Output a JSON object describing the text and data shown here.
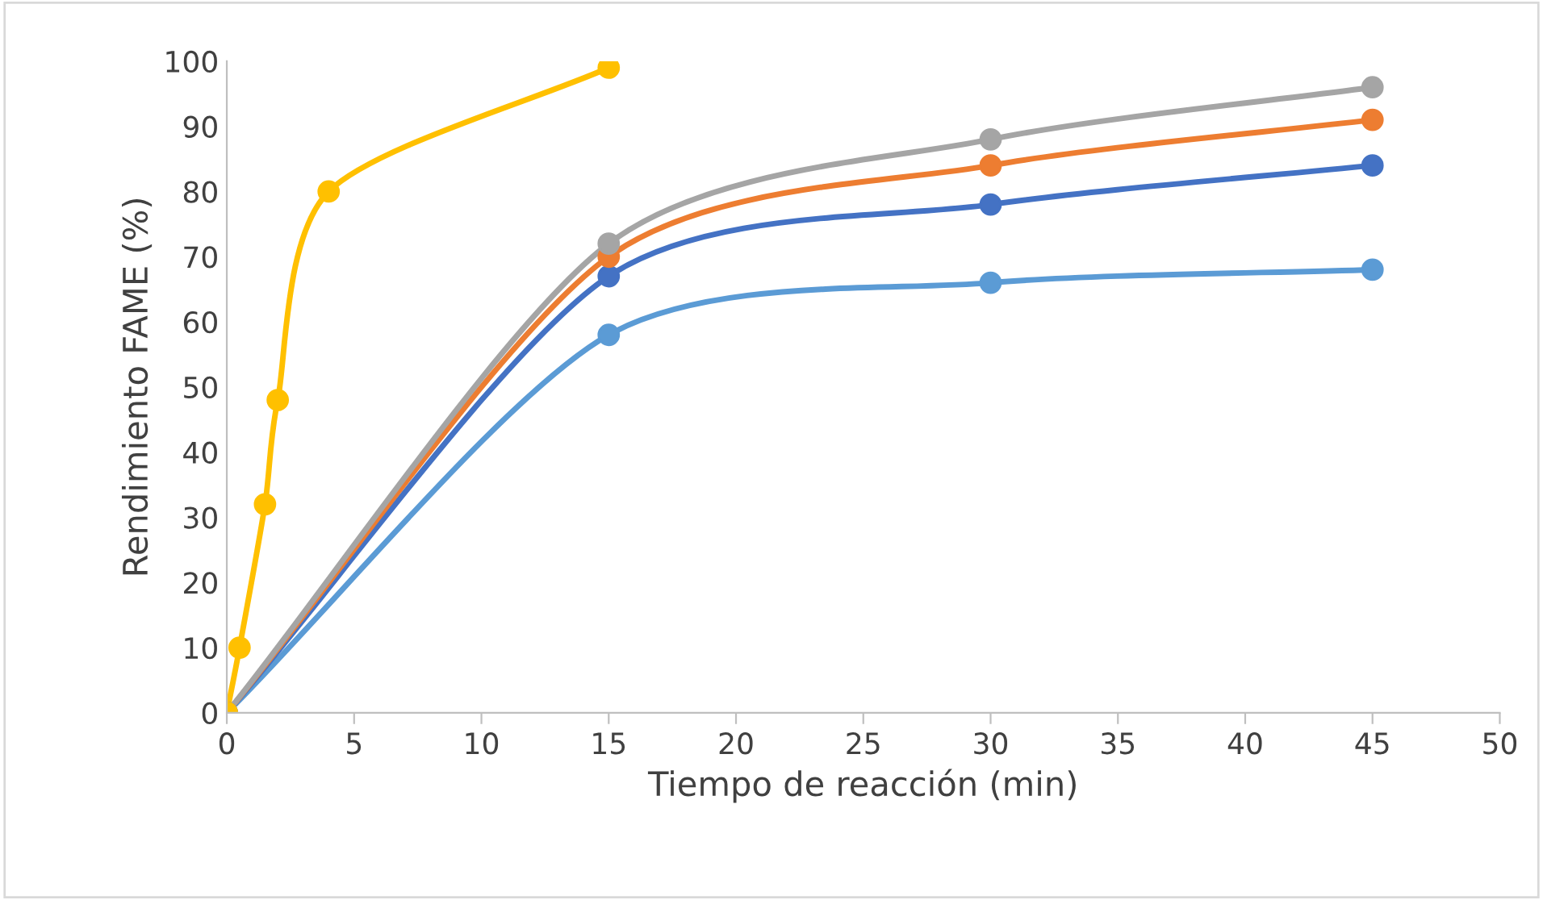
{
  "chart_data": {
    "type": "line",
    "xlabel": "Tiempo de reacción (min)",
    "ylabel": "Rendimiento FAME (%)",
    "xlim": [
      0,
      50
    ],
    "xticks": [
      0,
      5,
      10,
      15,
      20,
      25,
      30,
      35,
      40,
      45,
      50
    ],
    "ylim": [
      0,
      100
    ],
    "yticks": [
      0,
      10,
      20,
      30,
      40,
      50,
      60,
      70,
      80,
      90,
      100
    ],
    "grid": false,
    "legend": false,
    "marker": "circle",
    "line_style": "solid",
    "series": [
      {
        "color": "#5b9bd5",
        "x": [
          0,
          15,
          30,
          45
        ],
        "values": [
          0,
          58,
          66,
          68
        ]
      },
      {
        "color": "#4472c4",
        "x": [
          0,
          15,
          30,
          45
        ],
        "values": [
          0,
          67,
          78,
          84
        ]
      },
      {
        "color": "#ed7d31",
        "x": [
          0,
          15,
          30,
          45
        ],
        "values": [
          0,
          70,
          84,
          91
        ]
      },
      {
        "color": "#a5a5a5",
        "x": [
          0,
          15,
          30,
          45
        ],
        "values": [
          0,
          72,
          88,
          96
        ]
      },
      {
        "color": "#ffc000",
        "x": [
          0,
          0.5,
          1.5,
          2,
          4,
          15
        ],
        "values": [
          0,
          10,
          32,
          48,
          80,
          99
        ]
      }
    ]
  }
}
